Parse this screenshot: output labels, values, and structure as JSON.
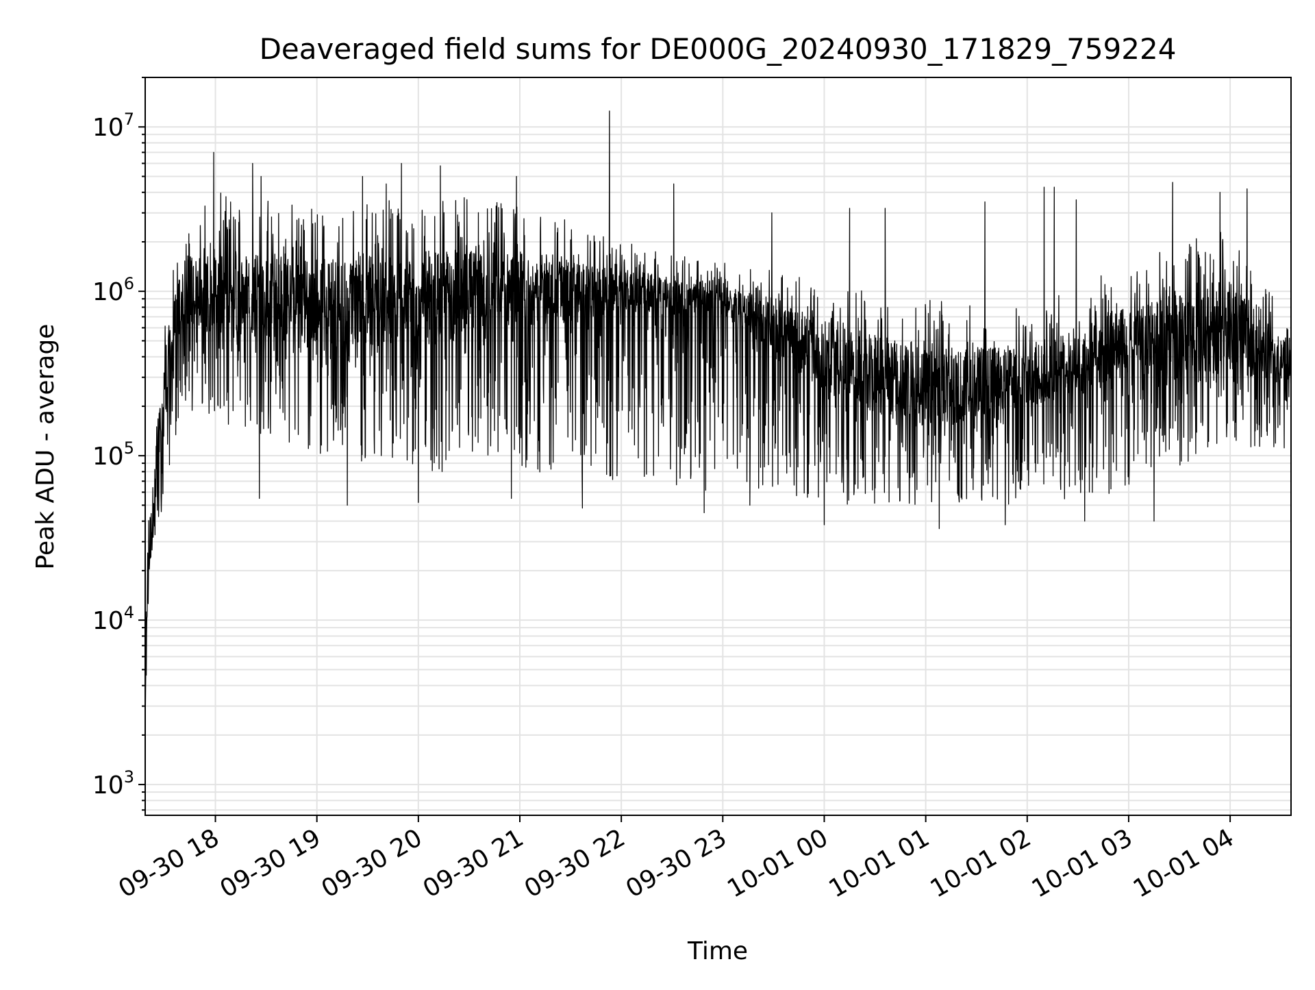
{
  "chart_data": {
    "type": "line",
    "title": "Deaveraged field sums for DE000G_20240930_171829_759224",
    "xlabel": "Time",
    "ylabel": "Peak ADU - average",
    "yscale": "log",
    "ylim": [
      650,
      20000000
    ],
    "xlim": [
      "2024-09-30 17:18:29",
      "2024-10-01 04:36:00"
    ],
    "grid": true,
    "x_ticks": [
      {
        "value": "2024-09-30 18:00",
        "label": "09-30 18"
      },
      {
        "value": "2024-09-30 19:00",
        "label": "09-30 19"
      },
      {
        "value": "2024-09-30 20:00",
        "label": "09-30 20"
      },
      {
        "value": "2024-09-30 21:00",
        "label": "09-30 21"
      },
      {
        "value": "2024-09-30 22:00",
        "label": "09-30 22"
      },
      {
        "value": "2024-09-30 23:00",
        "label": "09-30 23"
      },
      {
        "value": "2024-10-01 00:00",
        "label": "10-01 00"
      },
      {
        "value": "2024-10-01 01:00",
        "label": "10-01 01"
      },
      {
        "value": "2024-10-01 02:00",
        "label": "10-01 02"
      },
      {
        "value": "2024-10-01 03:00",
        "label": "10-01 03"
      },
      {
        "value": "2024-10-01 04:00",
        "label": "10-01 04"
      }
    ],
    "y_ticks": [
      {
        "value": 1000,
        "base": "10",
        "exp": "3"
      },
      {
        "value": 10000,
        "base": "10",
        "exp": "4"
      },
      {
        "value": 100000,
        "base": "10",
        "exp": "5"
      },
      {
        "value": 1000000,
        "base": "10",
        "exp": "6"
      },
      {
        "value": 10000000,
        "base": "10",
        "exp": "7"
      }
    ],
    "series": [
      {
        "color": "#000000",
        "envelope": [
          {
            "t": "2024-09-30 17:18:29",
            "high": 10000,
            "low": 2800,
            "typical": 8000
          },
          {
            "t": "2024-09-30 17:21:00",
            "high": 60000,
            "low": 10000,
            "typical": 25000
          },
          {
            "t": "2024-09-30 17:25:00",
            "high": 200000,
            "low": 30000,
            "typical": 80000
          },
          {
            "t": "2024-09-30 17:30:00",
            "high": 800000,
            "low": 60000,
            "typical": 300000
          },
          {
            "t": "2024-09-30 17:40:00",
            "high": 2500000,
            "low": 200000,
            "typical": 1000000
          },
          {
            "t": "2024-09-30 18:00:00",
            "high": 4000000,
            "low": 150000,
            "typical": 1000000
          },
          {
            "t": "2024-09-30 19:00:00",
            "high": 3500000,
            "low": 100000,
            "typical": 900000
          },
          {
            "t": "2024-09-30 20:00:00",
            "high": 4000000,
            "low": 80000,
            "typical": 900000
          },
          {
            "t": "2024-09-30 21:00:00",
            "high": 3500000,
            "low": 80000,
            "typical": 1000000
          },
          {
            "t": "2024-09-30 22:00:00",
            "high": 2000000,
            "low": 70000,
            "typical": 1000000
          },
          {
            "t": "2024-09-30 23:00:00",
            "high": 1500000,
            "low": 60000,
            "typical": 900000
          },
          {
            "t": "2024-10-01 00:00:00",
            "high": 1200000,
            "low": 50000,
            "typical": 400000
          },
          {
            "t": "2024-10-01 01:00:00",
            "high": 900000,
            "low": 50000,
            "typical": 250000
          },
          {
            "t": "2024-10-01 02:00:00",
            "high": 800000,
            "low": 50000,
            "typical": 300000
          },
          {
            "t": "2024-10-01 03:00:00",
            "high": 1500000,
            "low": 60000,
            "typical": 500000
          },
          {
            "t": "2024-10-01 04:00:00",
            "high": 2500000,
            "low": 120000,
            "typical": 600000
          },
          {
            "t": "2024-10-01 04:36:00",
            "high": 600000,
            "low": 100000,
            "typical": 350000
          }
        ],
        "spikes": [
          {
            "t": "2024-09-30 17:59:00",
            "value": 7000000
          },
          {
            "t": "2024-09-30 18:22:00",
            "value": 6000000
          },
          {
            "t": "2024-09-30 18:27:00",
            "value": 5000000
          },
          {
            "t": "2024-09-30 19:27:00",
            "value": 5000000
          },
          {
            "t": "2024-09-30 19:41:00",
            "value": 4500000
          },
          {
            "t": "2024-09-30 19:50:00",
            "value": 6000000
          },
          {
            "t": "2024-09-30 20:13:00",
            "value": 5800000
          },
          {
            "t": "2024-09-30 20:58:00",
            "value": 5000000
          },
          {
            "t": "2024-09-30 21:53:00",
            "value": 12500000
          },
          {
            "t": "2024-09-30 22:31:00",
            "value": 4500000
          },
          {
            "t": "2024-09-30 23:29:00",
            "value": 3000000
          },
          {
            "t": "2024-10-01 00:15:00",
            "value": 3200000
          },
          {
            "t": "2024-10-01 00:36:00",
            "value": 3200000
          },
          {
            "t": "2024-10-01 01:35:00",
            "value": 3500000
          },
          {
            "t": "2024-10-01 02:10:00",
            "value": 4300000
          },
          {
            "t": "2024-10-01 02:16:00",
            "value": 4300000
          },
          {
            "t": "2024-10-01 02:29:00",
            "value": 3600000
          },
          {
            "t": "2024-10-01 03:26:00",
            "value": 4600000
          },
          {
            "t": "2024-10-01 03:54:00",
            "value": 4000000
          },
          {
            "t": "2024-10-01 04:10:00",
            "value": 4200000
          }
        ],
        "dips": [
          {
            "t": "2024-09-30 18:26:00",
            "value": 55000
          },
          {
            "t": "2024-09-30 19:18:00",
            "value": 50000
          },
          {
            "t": "2024-09-30 20:00:00",
            "value": 52000
          },
          {
            "t": "2024-09-30 20:55:00",
            "value": 55000
          },
          {
            "t": "2024-09-30 21:37:00",
            "value": 48000
          },
          {
            "t": "2024-09-30 22:49:00",
            "value": 45000
          },
          {
            "t": "2024-09-30 23:16:00",
            "value": 50000
          },
          {
            "t": "2024-10-01 00:00:00",
            "value": 38000
          },
          {
            "t": "2024-10-01 01:08:00",
            "value": 36000
          },
          {
            "t": "2024-10-01 01:47:00",
            "value": 38000
          },
          {
            "t": "2024-10-01 02:34:00",
            "value": 40000
          },
          {
            "t": "2024-10-01 03:15:00",
            "value": 40000
          }
        ]
      }
    ]
  }
}
